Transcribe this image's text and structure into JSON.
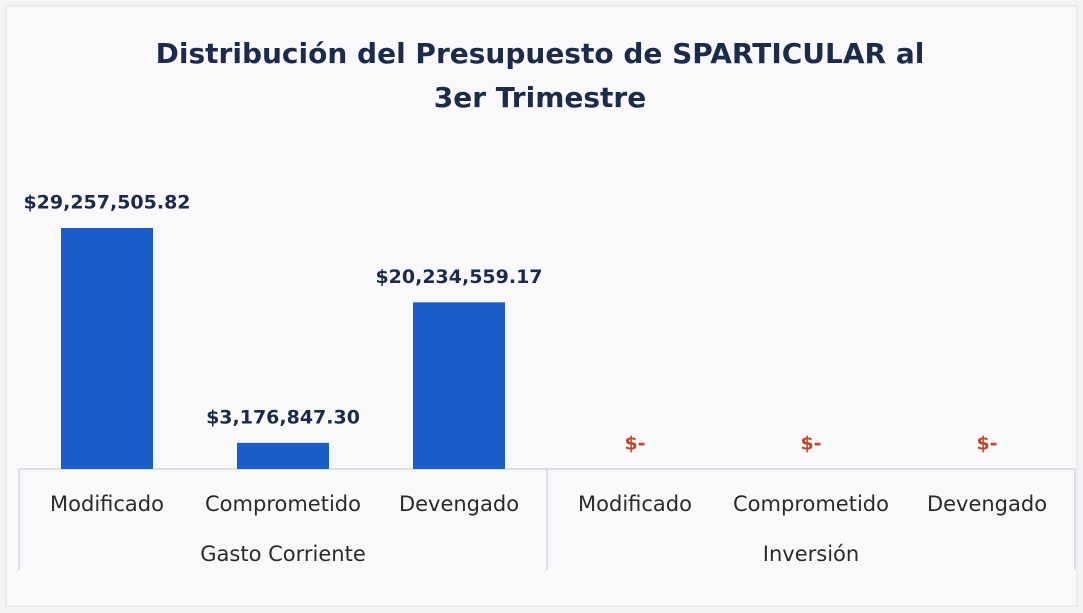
{
  "chart_data": {
    "type": "bar",
    "title": "Distribución del Presupuesto de SPARTICULAR al 3er Trimestre",
    "color": "#1a5cc8",
    "label_color": "#1c2b4b",
    "empty_label_color": "#c4462a",
    "groups": [
      {
        "name": "Gasto Corriente",
        "categories": [
          "Modificado",
          "Comprometido",
          "Devengado"
        ],
        "values": [
          29257505.82,
          3176847.3,
          20234559.17
        ],
        "value_labels": [
          "$29,257,505.82",
          "$3,176,847.30",
          "$20,234,559.17"
        ]
      },
      {
        "name": "Inversión",
        "categories": [
          "Modificado",
          "Comprometido",
          "Devengado"
        ],
        "values": [
          0,
          0,
          0
        ],
        "value_labels": [
          "$-",
          "$-",
          "$-"
        ]
      }
    ]
  }
}
